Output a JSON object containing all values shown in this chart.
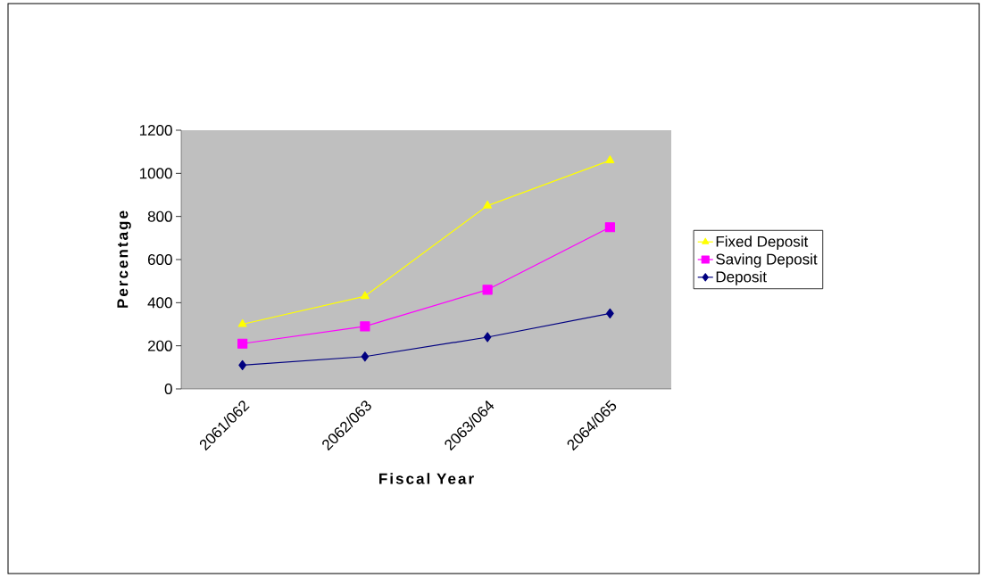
{
  "chart_data": {
    "type": "line",
    "xlabel": "Fiscal Year",
    "ylabel": "Percentage",
    "categories": [
      "2061/062",
      "2062/063",
      "2063/064",
      "2064/065"
    ],
    "series": [
      {
        "name": "Fixed Deposit",
        "color": "#ffff00",
        "marker": "triangle",
        "values": [
          300,
          430,
          850,
          1060
        ]
      },
      {
        "name": "Saving Deposit",
        "color": "#ff00ff",
        "marker": "square",
        "values": [
          210,
          290,
          460,
          750
        ]
      },
      {
        "name": "Deposit",
        "color": "#000080",
        "marker": "diamond",
        "values": [
          110,
          150,
          240,
          350
        ]
      }
    ],
    "ylim": [
      0,
      1200
    ],
    "yticks": [
      0,
      200,
      400,
      600,
      800,
      1000,
      1200
    ],
    "grid": false,
    "legend": "right"
  }
}
